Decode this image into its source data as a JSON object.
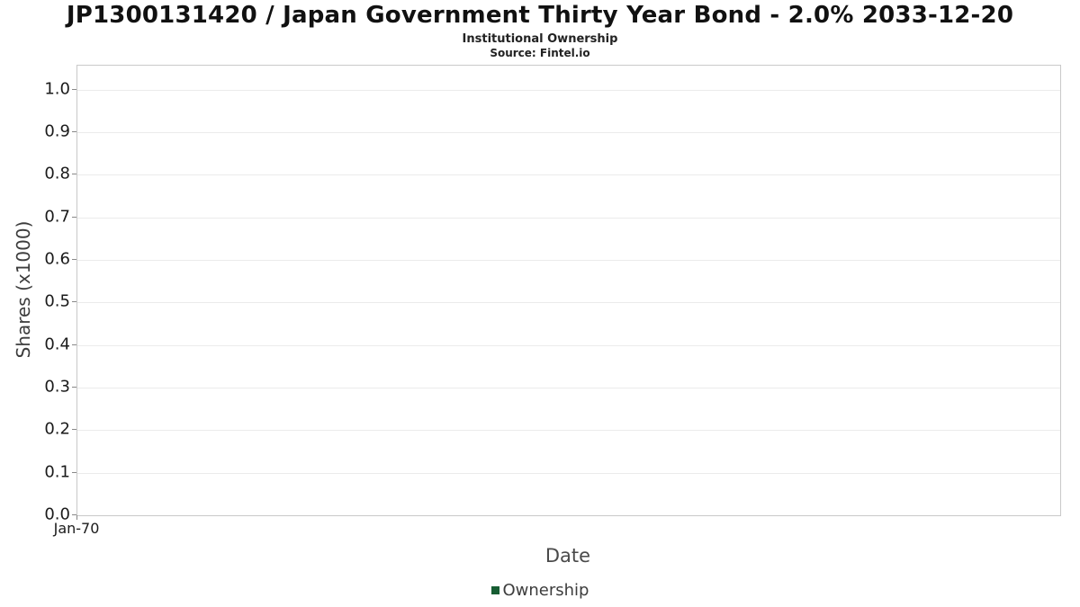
{
  "header": {
    "title": "JP1300131420 / Japan Government Thirty Year Bond - 2.0% 2033-12-20",
    "subtitle": "Institutional Ownership",
    "source": "Source: Fintel.io"
  },
  "chart_data": {
    "type": "line",
    "title": "JP1300131420 / Japan Government Thirty Year Bond - 2.0% 2033-12-20",
    "subtitle": "Institutional Ownership",
    "source": "Source: Fintel.io",
    "xlabel": "Date",
    "ylabel": "Shares (x1000)",
    "ylim": [
      0.0,
      1.056
    ],
    "yticks": [
      0.0,
      0.1,
      0.2,
      0.3,
      0.4,
      0.5,
      0.6,
      0.7,
      0.8,
      0.9,
      1.0
    ],
    "ytick_decimals": 1,
    "xticks": [
      "Jan-70"
    ],
    "grid": true,
    "legend_position": "bottom",
    "series": [
      {
        "name": "Ownership",
        "color": "#175d33",
        "x": [],
        "values": []
      }
    ]
  }
}
